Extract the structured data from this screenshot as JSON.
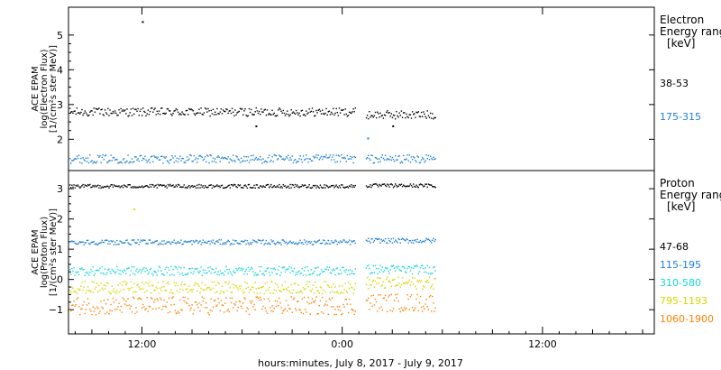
{
  "chart_data": {
    "type": "scatter",
    "xlabel": "hours:minutes,  July  8, 2017 - July  9, 2017",
    "x_ticks": [
      "12:00",
      "0:00",
      "12:00"
    ],
    "x_hours": [
      12,
      24,
      36
    ],
    "xlim_hours": [
      7.6,
      42.7
    ],
    "data_gap_hours": [
      24.8,
      25.4
    ],
    "data_end_hours": 29.6,
    "panels": [
      {
        "name": "electron",
        "ylabel_lines": [
          "ACE EPAM",
          "log(Electron Flux)",
          "[1/(cm²s ster MeV)]"
        ],
        "ylim": [
          1.1,
          5.8
        ],
        "yticks": [
          2,
          3,
          4,
          5
        ],
        "legend_title_lines": [
          "Electron",
          "Energy ranges",
          "[keV]"
        ],
        "series": [
          {
            "name": "38-53",
            "color": "#000000",
            "level": 2.8,
            "spread": 0.12,
            "end_level": 2.72
          },
          {
            "name": "175-315",
            "color": "#1f7fd4",
            "level": 1.45,
            "spread": 0.12,
            "end_level": 1.45
          }
        ],
        "outliers": [
          {
            "x": 12.0,
            "y": 5.4
          },
          {
            "x": 25.5,
            "y": 2.05
          },
          {
            "x": 27.0,
            "y": 2.4
          },
          {
            "x": 18.8,
            "y": 2.4
          }
        ]
      },
      {
        "name": "proton",
        "ylabel_lines": [
          "ACE EPAM",
          "log(Proton Flux)",
          "[1/(cm²s ster MeV)]"
        ],
        "ylim": [
          -1.8,
          3.6
        ],
        "yticks": [
          -1,
          0,
          1,
          2,
          3
        ],
        "legend_title_lines": [
          "Proton",
          "Energy ranges",
          "[keV]"
        ],
        "series": [
          {
            "name": "47-68",
            "color": "#000000",
            "level": 3.1,
            "spread": 0.06,
            "end_level": 3.12
          },
          {
            "name": "115-195",
            "color": "#1f7fd4",
            "level": 1.25,
            "spread": 0.08,
            "end_level": 1.3
          },
          {
            "name": "310-580",
            "color": "#17d6d6",
            "level": 0.3,
            "spread": 0.15,
            "end_level": 0.35
          },
          {
            "name": "795-1193",
            "color": "#d6d600",
            "level": -0.25,
            "spread": 0.2,
            "end_level": -0.1
          },
          {
            "name": "1060-1900",
            "color": "#ff8000",
            "level": -0.85,
            "spread": 0.3,
            "end_level": -0.75
          }
        ],
        "outliers": [
          {
            "x": 11.5,
            "y": 2.35
          }
        ]
      }
    ]
  }
}
